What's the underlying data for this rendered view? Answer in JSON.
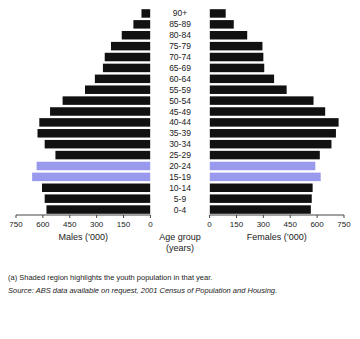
{
  "chart_data": {
    "type": "bar",
    "orientation": "horizontal",
    "categories": [
      "0-4",
      "5-9",
      "10-14",
      "15-19",
      "20-24",
      "25-29",
      "30-34",
      "35-39",
      "40-44",
      "45-49",
      "50-54",
      "55-59",
      "60-64",
      "65-69",
      "70-74",
      "75-79",
      "80-84",
      "85-89",
      "90+"
    ],
    "ylabel": "Age group\n(years)",
    "series": [
      {
        "name": "Males (’000)",
        "colors": [
          "#111111",
          "#111111",
          "#111111",
          "#9999ee",
          "#9999ee",
          "#111111",
          "#111111",
          "#111111",
          "#111111",
          "#111111",
          "#111111",
          "#111111",
          "#111111",
          "#111111",
          "#111111",
          "#111111",
          "#111111",
          "#111111",
          "#111111"
        ],
        "values": [
          580,
          590,
          605,
          660,
          635,
          530,
          590,
          630,
          620,
          560,
          490,
          365,
          310,
          265,
          255,
          220,
          160,
          95,
          50
        ]
      },
      {
        "name": "Females (’000)",
        "colors": [
          "#111111",
          "#111111",
          "#111111",
          "#9999ee",
          "#9999ee",
          "#111111",
          "#111111",
          "#111111",
          "#111111",
          "#111111",
          "#111111",
          "#111111",
          "#111111",
          "#111111",
          "#111111",
          "#111111",
          "#111111",
          "#111111",
          "#111111"
        ],
        "values": [
          565,
          570,
          575,
          620,
          590,
          615,
          680,
          705,
          720,
          645,
          580,
          430,
          360,
          305,
          300,
          295,
          210,
          135,
          90
        ]
      }
    ],
    "xlim": [
      0,
      750
    ],
    "xticks": [
      0,
      150,
      300,
      450,
      600,
      750
    ],
    "grid": false,
    "annotations": [
      "(a) Shaded region highlights the youth population in that year.",
      "Source: ABS data available on request, 2001 Census of Population and Housing."
    ]
  }
}
